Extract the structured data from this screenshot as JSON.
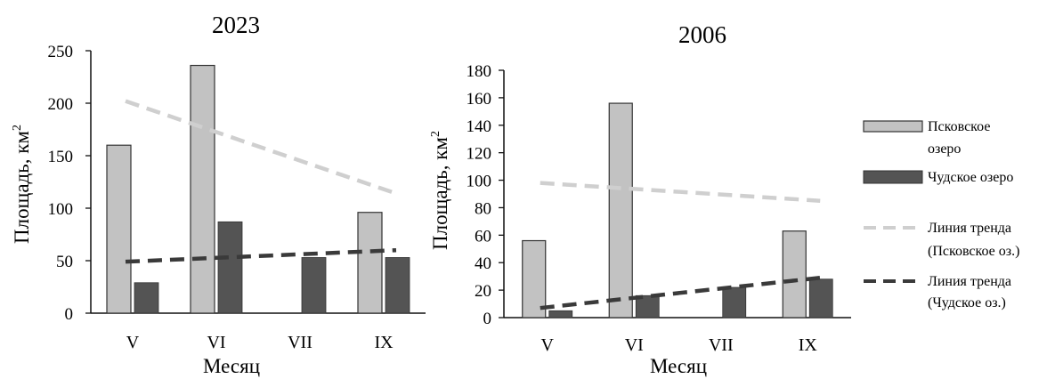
{
  "colors": {
    "pskov": "#c2c2c2",
    "chud": "#545454",
    "trend_pskov": "#cfcfcf",
    "trend_chud": "#3a3a3a",
    "axis": "#111111",
    "bar_stroke": "#333333"
  },
  "legend": {
    "pskov_line1": "Псковское",
    "pskov_line2": "озеро",
    "chud": "Чудское озеро",
    "trend_pskov_line1": "Линия тренда",
    "trend_pskov_line2": "(Псковское оз.)",
    "trend_chud_line1": "Линия тренда",
    "trend_chud_line2": "(Чудское оз.)"
  },
  "chart_data": [
    {
      "type": "bar",
      "title": "2023",
      "xlabel": "Месяц",
      "ylabel": "Площадь, км",
      "ylabel_sup": "2",
      "ylim": [
        0,
        250
      ],
      "yticks": [
        "0",
        "50",
        "100",
        "150",
        "200",
        "250"
      ],
      "categories": [
        "V",
        "VI",
        "VII",
        "IX"
      ],
      "series": [
        {
          "name": "Псковское озеро",
          "values": [
            160,
            236,
            null,
            96
          ]
        },
        {
          "name": "Чудское озеро",
          "values": [
            29,
            87,
            53,
            53
          ]
        }
      ],
      "trendlines": [
        {
          "name": "Линия тренда (Псковское оз.)",
          "start": 202,
          "end": 114
        },
        {
          "name": "Линия тренда (Чудское оз.)",
          "start": 49,
          "end": 60
        }
      ]
    },
    {
      "type": "bar",
      "title": "2006",
      "xlabel": "Месяц",
      "ylabel": "Площадь, км",
      "ylabel_sup": "2",
      "ylim": [
        0,
        180
      ],
      "yticks": [
        "0",
        "20",
        "40",
        "60",
        "80",
        "100",
        "120",
        "140",
        "160",
        "180"
      ],
      "categories": [
        "V",
        "VI",
        "VII",
        "IX"
      ],
      "series": [
        {
          "name": "Псковское озеро",
          "values": [
            56,
            156,
            null,
            63
          ]
        },
        {
          "name": "Чудское озеро",
          "values": [
            5,
            16,
            22,
            28
          ]
        }
      ],
      "trendlines": [
        {
          "name": "Линия тренда (Псковское оз.)",
          "start": 98,
          "end": 85
        },
        {
          "name": "Линия тренда (Чудское оз.)",
          "start": 7,
          "end": 29
        }
      ]
    }
  ]
}
